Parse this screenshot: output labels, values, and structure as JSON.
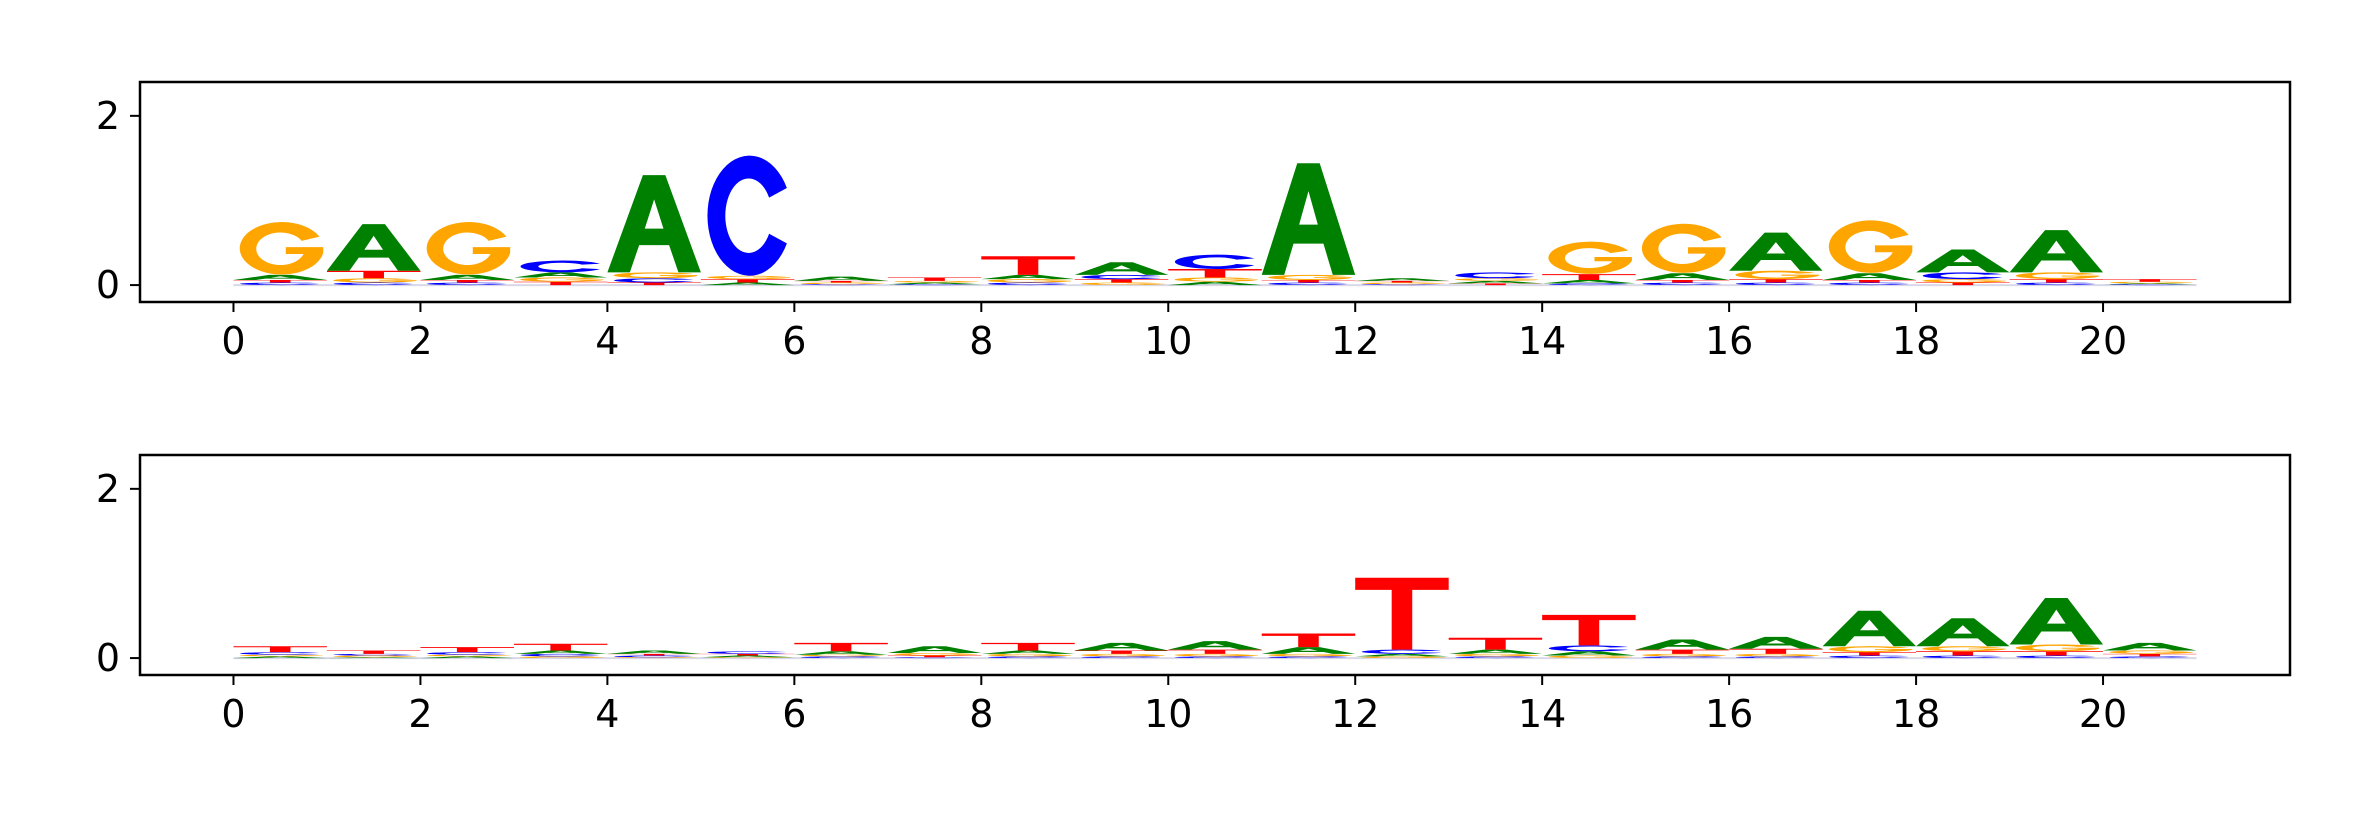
{
  "chart_data": [
    {
      "type": "sequence-logo",
      "title": "",
      "xlabel": "",
      "ylabel": "",
      "xlim": [
        -1,
        22
      ],
      "ylim": [
        -0.2,
        2.4
      ],
      "xticks": [
        0,
        2,
        4,
        6,
        8,
        10,
        12,
        14,
        16,
        18,
        20
      ],
      "yticks": [
        0,
        2
      ],
      "grid": false,
      "letter_colors": {
        "A": "#008000",
        "C": "#0000ff",
        "G": "#ffa500",
        "T": "#ff0000"
      },
      "positions": [
        {
          "x": 0,
          "letters": [
            [
              "C",
              0.03
            ],
            [
              "T",
              0.03
            ],
            [
              "A",
              0.06
            ],
            [
              "G",
              0.62
            ]
          ]
        },
        {
          "x": 1,
          "letters": [
            [
              "C",
              0.03
            ],
            [
              "G",
              0.05
            ],
            [
              "T",
              0.09
            ],
            [
              "A",
              0.55
            ]
          ]
        },
        {
          "x": 2,
          "letters": [
            [
              "C",
              0.03
            ],
            [
              "T",
              0.03
            ],
            [
              "A",
              0.06
            ],
            [
              "G",
              0.62
            ]
          ]
        },
        {
          "x": 3,
          "letters": [
            [
              "T",
              0.04
            ],
            [
              "G",
              0.05
            ],
            [
              "A",
              0.06
            ],
            [
              "C",
              0.14
            ]
          ]
        },
        {
          "x": 4,
          "letters": [
            [
              "T",
              0.03
            ],
            [
              "C",
              0.05
            ],
            [
              "G",
              0.07
            ],
            [
              "A",
              1.15
            ]
          ]
        },
        {
          "x": 5,
          "letters": [
            [
              "A",
              0.03
            ],
            [
              "T",
              0.04
            ],
            [
              "G",
              0.04
            ],
            [
              "C",
              1.42
            ]
          ]
        },
        {
          "x": 6,
          "letters": [
            [
              "C",
              0.01
            ],
            [
              "G",
              0.02
            ],
            [
              "T",
              0.02
            ],
            [
              "A",
              0.05
            ]
          ]
        },
        {
          "x": 7,
          "letters": [
            [
              "C",
              0.01
            ],
            [
              "A",
              0.02
            ],
            [
              "G",
              0.02
            ],
            [
              "T",
              0.04
            ]
          ]
        },
        {
          "x": 8,
          "letters": [
            [
              "C",
              0.03
            ],
            [
              "G",
              0.04
            ],
            [
              "A",
              0.05
            ],
            [
              "T",
              0.22
            ]
          ]
        },
        {
          "x": 9,
          "letters": [
            [
              "G",
              0.03
            ],
            [
              "T",
              0.04
            ],
            [
              "C",
              0.05
            ],
            [
              "A",
              0.15
            ]
          ]
        },
        {
          "x": 10,
          "letters": [
            [
              "A",
              0.04
            ],
            [
              "G",
              0.05
            ],
            [
              "T",
              0.1
            ],
            [
              "C",
              0.17
            ]
          ]
        },
        {
          "x": 11,
          "letters": [
            [
              "C",
              0.03
            ],
            [
              "T",
              0.03
            ],
            [
              "G",
              0.06
            ],
            [
              "A",
              1.32
            ]
          ]
        },
        {
          "x": 12,
          "letters": [
            [
              "C",
              0.01
            ],
            [
              "G",
              0.02
            ],
            [
              "T",
              0.02
            ],
            [
              "A",
              0.03
            ]
          ]
        },
        {
          "x": 13,
          "letters": [
            [
              "T",
              0.02
            ],
            [
              "A",
              0.03
            ],
            [
              "G",
              0.03
            ],
            [
              "C",
              0.07
            ]
          ]
        },
        {
          "x": 14,
          "letters": [
            [
              "C",
              0.02
            ],
            [
              "A",
              0.04
            ],
            [
              "T",
              0.07
            ],
            [
              "G",
              0.38
            ]
          ]
        },
        {
          "x": 15,
          "letters": [
            [
              "C",
              0.03
            ],
            [
              "T",
              0.03
            ],
            [
              "A",
              0.08
            ],
            [
              "G",
              0.58
            ]
          ]
        },
        {
          "x": 16,
          "letters": [
            [
              "C",
              0.03
            ],
            [
              "T",
              0.04
            ],
            [
              "G",
              0.1
            ],
            [
              "A",
              0.45
            ]
          ]
        },
        {
          "x": 17,
          "letters": [
            [
              "C",
              0.03
            ],
            [
              "T",
              0.03
            ],
            [
              "A",
              0.08
            ],
            [
              "G",
              0.62
            ]
          ]
        },
        {
          "x": 18,
          "letters": [
            [
              "T",
              0.03
            ],
            [
              "G",
              0.04
            ],
            [
              "C",
              0.08
            ],
            [
              "A",
              0.27
            ]
          ]
        },
        {
          "x": 19,
          "letters": [
            [
              "C",
              0.03
            ],
            [
              "T",
              0.04
            ],
            [
              "G",
              0.08
            ],
            [
              "A",
              0.5
            ]
          ]
        },
        {
          "x": 20,
          "letters": [
            [
              "C",
              0.01
            ],
            [
              "A",
              0.01
            ],
            [
              "G",
              0.02
            ],
            [
              "T",
              0.03
            ]
          ]
        }
      ]
    },
    {
      "type": "sequence-logo",
      "title": "",
      "xlabel": "",
      "ylabel": "",
      "xlim": [
        -1,
        22
      ],
      "ylim": [
        -0.2,
        2.4
      ],
      "xticks": [
        0,
        2,
        4,
        6,
        8,
        10,
        12,
        14,
        16,
        18,
        20
      ],
      "yticks": [
        0,
        2
      ],
      "grid": false,
      "letter_colors": {
        "A": "#008000",
        "C": "#0000ff",
        "G": "#ffa500",
        "T": "#ff0000"
      },
      "positions": [
        {
          "x": 0,
          "letters": [
            [
              "A",
              0.02
            ],
            [
              "G",
              0.02
            ],
            [
              "C",
              0.03
            ],
            [
              "T",
              0.07
            ]
          ]
        },
        {
          "x": 1,
          "letters": [
            [
              "A",
              0.01
            ],
            [
              "G",
              0.02
            ],
            [
              "C",
              0.02
            ],
            [
              "T",
              0.04
            ]
          ]
        },
        {
          "x": 2,
          "letters": [
            [
              "A",
              0.02
            ],
            [
              "G",
              0.02
            ],
            [
              "C",
              0.03
            ],
            [
              "T",
              0.06
            ]
          ]
        },
        {
          "x": 3,
          "letters": [
            [
              "G",
              0.02
            ],
            [
              "C",
              0.03
            ],
            [
              "A",
              0.04
            ],
            [
              "T",
              0.08
            ]
          ]
        },
        {
          "x": 4,
          "letters": [
            [
              "G",
              0.01
            ],
            [
              "C",
              0.02
            ],
            [
              "T",
              0.02
            ],
            [
              "A",
              0.04
            ]
          ]
        },
        {
          "x": 5,
          "letters": [
            [
              "G",
              0.01
            ],
            [
              "A",
              0.02
            ],
            [
              "T",
              0.02
            ],
            [
              "C",
              0.03
            ]
          ]
        },
        {
          "x": 6,
          "letters": [
            [
              "C",
              0.02
            ],
            [
              "G",
              0.02
            ],
            [
              "A",
              0.04
            ],
            [
              "T",
              0.1
            ]
          ]
        },
        {
          "x": 7,
          "letters": [
            [
              "C",
              0.01
            ],
            [
              "T",
              0.02
            ],
            [
              "G",
              0.03
            ],
            [
              "A",
              0.08
            ]
          ]
        },
        {
          "x": 8,
          "letters": [
            [
              "C",
              0.02
            ],
            [
              "G",
              0.03
            ],
            [
              "A",
              0.04
            ],
            [
              "T",
              0.09
            ]
          ]
        },
        {
          "x": 9,
          "letters": [
            [
              "C",
              0.02
            ],
            [
              "G",
              0.03
            ],
            [
              "T",
              0.04
            ],
            [
              "A",
              0.09
            ]
          ]
        },
        {
          "x": 10,
          "letters": [
            [
              "C",
              0.02
            ],
            [
              "G",
              0.03
            ],
            [
              "T",
              0.05
            ],
            [
              "A",
              0.1
            ]
          ]
        },
        {
          "x": 11,
          "letters": [
            [
              "C",
              0.02
            ],
            [
              "G",
              0.03
            ],
            [
              "A",
              0.08
            ],
            [
              "T",
              0.16
            ]
          ]
        },
        {
          "x": 12,
          "letters": [
            [
              "G",
              0.02
            ],
            [
              "A",
              0.03
            ],
            [
              "C",
              0.05
            ],
            [
              "T",
              0.85
            ]
          ]
        },
        {
          "x": 13,
          "letters": [
            [
              "C",
              0.02
            ],
            [
              "G",
              0.03
            ],
            [
              "A",
              0.05
            ],
            [
              "T",
              0.14
            ]
          ]
        },
        {
          "x": 14,
          "letters": [
            [
              "G",
              0.03
            ],
            [
              "A",
              0.05
            ],
            [
              "C",
              0.07
            ],
            [
              "T",
              0.36
            ]
          ]
        },
        {
          "x": 15,
          "letters": [
            [
              "C",
              0.02
            ],
            [
              "G",
              0.03
            ],
            [
              "T",
              0.05
            ],
            [
              "A",
              0.12
            ]
          ]
        },
        {
          "x": 16,
          "letters": [
            [
              "C",
              0.02
            ],
            [
              "G",
              0.03
            ],
            [
              "T",
              0.06
            ],
            [
              "A",
              0.14
            ]
          ]
        },
        {
          "x": 17,
          "letters": [
            [
              "C",
              0.03
            ],
            [
              "T",
              0.04
            ],
            [
              "G",
              0.07
            ],
            [
              "A",
              0.42
            ]
          ]
        },
        {
          "x": 18,
          "letters": [
            [
              "C",
              0.03
            ],
            [
              "T",
              0.05
            ],
            [
              "G",
              0.06
            ],
            [
              "A",
              0.33
            ]
          ]
        },
        {
          "x": 19,
          "letters": [
            [
              "C",
              0.03
            ],
            [
              "T",
              0.05
            ],
            [
              "G",
              0.08
            ],
            [
              "A",
              0.55
            ]
          ]
        },
        {
          "x": 20,
          "letters": [
            [
              "C",
              0.02
            ],
            [
              "T",
              0.03
            ],
            [
              "G",
              0.04
            ],
            [
              "A",
              0.09
            ]
          ]
        }
      ]
    }
  ]
}
